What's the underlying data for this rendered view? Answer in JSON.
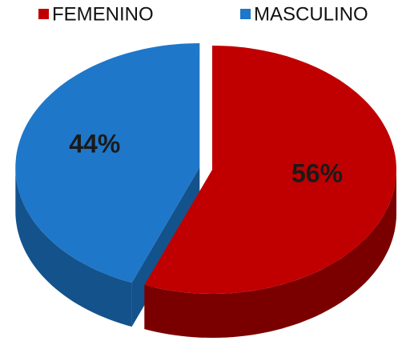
{
  "chart_data": {
    "type": "pie3d",
    "categories": [
      "FEMENINO",
      "MASCULINO"
    ],
    "values": [
      56,
      44
    ],
    "value_labels": [
      "56%",
      "44%"
    ],
    "colors": [
      "#c00000",
      "#1f77c9"
    ],
    "side_colors": [
      "#7a0000",
      "#14528c"
    ],
    "legend": "top"
  }
}
